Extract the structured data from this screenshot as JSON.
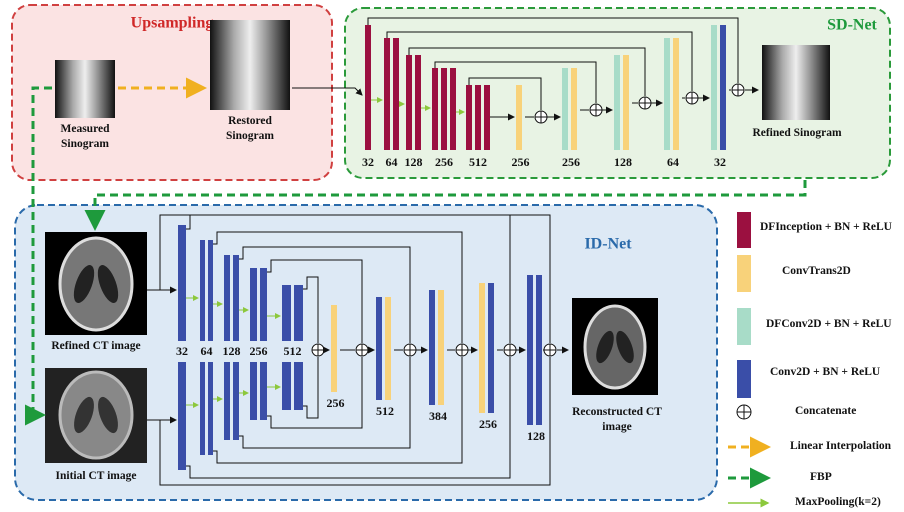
{
  "upsampling": {
    "title": "Upsampling",
    "measured": "Measured Sinogram",
    "restored": "Restored Sinogram"
  },
  "sd_net": {
    "title": "SD-Net",
    "encoder": [
      32,
      64,
      128,
      256,
      512
    ],
    "decoder": [
      256,
      256,
      128,
      64,
      32
    ],
    "output": "Refined Sinogram"
  },
  "id_net": {
    "title": "ID-Net",
    "inputs": [
      "Refined CT image",
      "Initial CT image"
    ],
    "encoder": [
      32,
      64,
      128,
      256,
      512
    ],
    "decoder": [
      256,
      512,
      384,
      256,
      128
    ],
    "output": "Reconstructed CT image"
  },
  "legend": [
    "DFInception + BN + ReLU",
    "ConvTrans2D",
    "DFConv2D + BN + ReLU",
    "Conv2D + BN + ReLU",
    "Concatenate",
    "Linear Interpolation",
    "FBP",
    "MaxPooling(k=2)"
  ]
}
